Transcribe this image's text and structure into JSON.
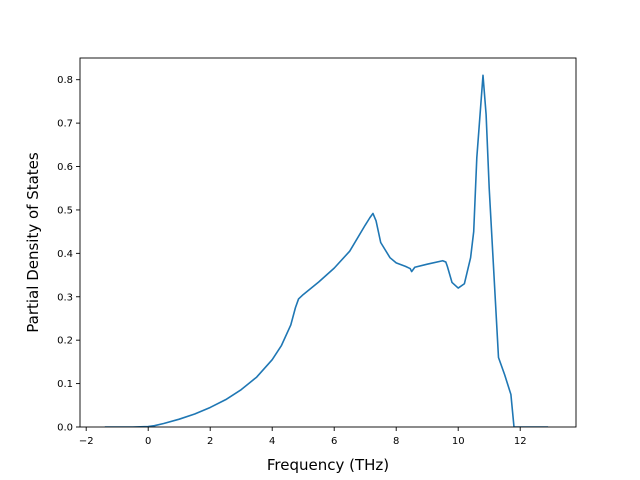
{
  "chart_data": {
    "type": "line",
    "title": "",
    "xlabel": "Frequency (THz)",
    "ylabel": "Partial Density of States",
    "xlim": [
      -2.2,
      13.8
    ],
    "ylim": [
      0.0,
      0.85
    ],
    "xticks": [
      -2,
      0,
      2,
      4,
      6,
      8,
      10,
      12
    ],
    "xtick_labels": [
      "−2",
      "0",
      "2",
      "4",
      "6",
      "8",
      "10",
      "12"
    ],
    "yticks": [
      0.0,
      0.1,
      0.2,
      0.3,
      0.4,
      0.5,
      0.6,
      0.7,
      0.8
    ],
    "ytick_labels": [
      "0.0",
      "0.1",
      "0.2",
      "0.3",
      "0.4",
      "0.5",
      "0.6",
      "0.7",
      "0.8"
    ],
    "grid": false,
    "legend": "none",
    "line_color": "#1f77b4",
    "series": [
      {
        "x": [
          -1.4,
          -0.5,
          0.0,
          0.2,
          0.5,
          1.0,
          1.5,
          2.0,
          2.5,
          3.0,
          3.5,
          4.0,
          4.3,
          4.6,
          4.75,
          4.85,
          5.0,
          5.5,
          6.0,
          6.5,
          7.0,
          7.15,
          7.25,
          7.35,
          7.5,
          7.8,
          8.0,
          8.3,
          8.45,
          8.5,
          8.6,
          9.0,
          9.5,
          9.6,
          9.65,
          9.8,
          10.0,
          10.2,
          10.4,
          10.5,
          10.6,
          10.8,
          10.9,
          11.0,
          11.2,
          11.3,
          11.5,
          11.7,
          11.8,
          12.0,
          12.9
        ],
        "y": [
          0.0,
          0.0,
          0.001,
          0.003,
          0.008,
          0.018,
          0.03,
          0.045,
          0.063,
          0.086,
          0.115,
          0.155,
          0.188,
          0.235,
          0.275,
          0.295,
          0.305,
          0.334,
          0.366,
          0.405,
          0.465,
          0.482,
          0.492,
          0.475,
          0.425,
          0.39,
          0.378,
          0.37,
          0.365,
          0.358,
          0.368,
          0.375,
          0.383,
          0.38,
          0.37,
          0.333,
          0.32,
          0.33,
          0.39,
          0.45,
          0.62,
          0.81,
          0.72,
          0.55,
          0.29,
          0.16,
          0.12,
          0.075,
          0.0,
          0.0,
          0.0
        ]
      }
    ]
  }
}
